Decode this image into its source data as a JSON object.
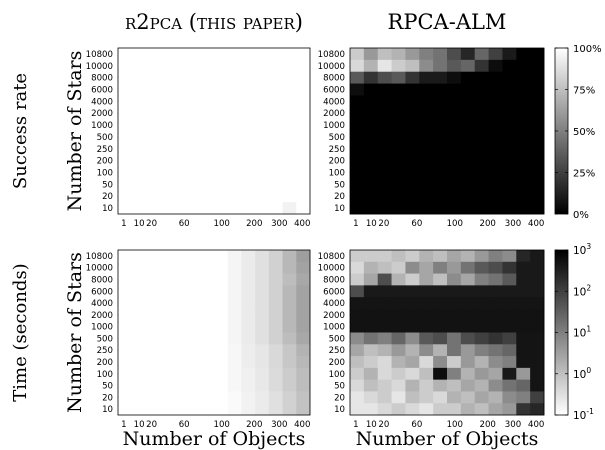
{
  "chart_data": [
    {
      "type": "heatmap",
      "title": "r2pca (this paper)",
      "row_label": "Success rate",
      "xlabel": "",
      "ylabel": "Number of Stars",
      "x_ticks": [
        "1",
        "10",
        "20",
        "60",
        "100",
        "200",
        "300",
        "400"
      ],
      "y_ticks": [
        "10800",
        "10000",
        "8000",
        "6000",
        "4000",
        "2000",
        "1000",
        "500",
        "250",
        "200",
        "100",
        "50",
        "20",
        "10"
      ],
      "colorbar": "none",
      "values": [
        [
          1,
          1,
          1,
          1,
          1,
          1,
          1,
          1,
          1,
          1,
          1,
          1,
          1,
          1
        ],
        [
          1,
          1,
          1,
          1,
          1,
          1,
          1,
          1,
          1,
          1,
          1,
          1,
          1,
          1
        ],
        [
          1,
          1,
          1,
          1,
          1,
          1,
          1,
          1,
          1,
          1,
          1,
          1,
          1,
          1
        ],
        [
          1,
          1,
          1,
          1,
          1,
          1,
          1,
          1,
          1,
          1,
          1,
          1,
          1,
          1
        ],
        [
          1,
          1,
          1,
          1,
          1,
          1,
          1,
          1,
          1,
          1,
          1,
          1,
          1,
          1
        ],
        [
          1,
          1,
          1,
          1,
          1,
          1,
          1,
          1,
          1,
          1,
          1,
          1,
          1,
          1
        ],
        [
          1,
          1,
          1,
          1,
          1,
          1,
          1,
          1,
          1,
          1,
          1,
          1,
          1,
          1
        ],
        [
          1,
          1,
          1,
          1,
          1,
          1,
          1,
          1,
          1,
          1,
          1,
          1,
          1,
          1
        ],
        [
          1,
          1,
          1,
          1,
          1,
          1,
          1,
          1,
          1,
          1,
          1,
          1,
          1,
          1
        ],
        [
          1,
          1,
          1,
          1,
          1,
          1,
          1,
          1,
          1,
          1,
          1,
          1,
          1,
          1
        ],
        [
          1,
          1,
          1,
          1,
          1,
          1,
          1,
          1,
          1,
          1,
          1,
          1,
          1,
          1
        ],
        [
          1,
          1,
          1,
          1,
          1,
          1,
          1,
          1,
          1,
          1,
          1,
          1,
          1,
          1
        ],
        [
          1,
          1,
          1,
          1,
          1,
          1,
          1,
          1,
          1,
          1,
          1,
          1,
          1,
          1
        ],
        [
          1,
          1,
          1,
          1,
          1,
          1,
          1,
          1,
          1,
          1,
          1,
          1,
          0.95,
          1
        ]
      ]
    },
    {
      "type": "heatmap",
      "title": "RPCA-ALM",
      "xlabel": "",
      "ylabel": "",
      "x_ticks": [
        "1",
        "10",
        "20",
        "60",
        "100",
        "200",
        "300",
        "400"
      ],
      "y_ticks": [
        "10800",
        "10000",
        "8000",
        "6000",
        "4000",
        "2000",
        "1000",
        "500",
        "250",
        "200",
        "100",
        "50",
        "20",
        "10"
      ],
      "colorbar": "linear",
      "colorbar_ticks": [
        "100%",
        "75%",
        "50%",
        "25%",
        "0%"
      ],
      "values": [
        [
          0.8,
          0.6,
          0.75,
          0.7,
          0.6,
          0.5,
          0.45,
          0.3,
          0.15,
          0.4,
          0.25,
          0.1,
          0,
          0
        ],
        [
          0.85,
          0.7,
          0.9,
          0.8,
          0.75,
          0.55,
          0.45,
          0.35,
          0.4,
          0.2,
          0.05,
          0,
          0,
          0
        ],
        [
          0.35,
          0.2,
          0.3,
          0.35,
          0.2,
          0.1,
          0.1,
          0.05,
          0,
          0,
          0,
          0,
          0,
          0
        ],
        [
          0.05,
          0,
          0,
          0,
          0,
          0,
          0,
          0,
          0,
          0,
          0,
          0,
          0,
          0
        ],
        [
          0,
          0,
          0,
          0,
          0,
          0,
          0,
          0,
          0,
          0,
          0,
          0,
          0,
          0
        ],
        [
          0,
          0,
          0,
          0,
          0,
          0,
          0,
          0,
          0,
          0,
          0,
          0,
          0,
          0
        ],
        [
          0,
          0,
          0,
          0,
          0,
          0,
          0,
          0,
          0,
          0,
          0,
          0,
          0,
          0
        ],
        [
          0,
          0,
          0,
          0,
          0,
          0,
          0,
          0,
          0,
          0,
          0,
          0,
          0,
          0
        ],
        [
          0,
          0,
          0,
          0,
          0,
          0,
          0,
          0,
          0,
          0,
          0,
          0,
          0,
          0
        ],
        [
          0,
          0,
          0,
          0,
          0,
          0,
          0,
          0,
          0,
          0,
          0,
          0,
          0,
          0
        ],
        [
          0,
          0,
          0,
          0,
          0,
          0,
          0,
          0,
          0,
          0,
          0,
          0,
          0,
          0
        ],
        [
          0,
          0,
          0,
          0,
          0,
          0,
          0,
          0,
          0,
          0,
          0,
          0,
          0,
          0
        ],
        [
          0,
          0,
          0,
          0,
          0,
          0,
          0,
          0,
          0,
          0,
          0,
          0,
          0,
          0
        ],
        [
          0,
          0,
          0,
          0,
          0,
          0,
          0,
          0,
          0,
          0,
          0,
          0,
          0,
          0
        ]
      ]
    },
    {
      "type": "heatmap",
      "row_label": "Time (seconds)",
      "xlabel": "Number of Objects",
      "ylabel": "Number of Stars",
      "x_ticks": [
        "1",
        "10",
        "20",
        "60",
        "100",
        "200",
        "300",
        "400"
      ],
      "y_ticks": [
        "10800",
        "10000",
        "8000",
        "6000",
        "4000",
        "2000",
        "1000",
        "500",
        "250",
        "200",
        "100",
        "50",
        "20",
        "10"
      ],
      "colorbar": "none",
      "values": [
        [
          0,
          0,
          0,
          0,
          0,
          0,
          0,
          0,
          0.04,
          0.08,
          0.12,
          0.18,
          0.28,
          0.38
        ],
        [
          0,
          0,
          0,
          0,
          0,
          0,
          0,
          0,
          0.04,
          0.08,
          0.12,
          0.18,
          0.28,
          0.36
        ],
        [
          0,
          0,
          0,
          0,
          0,
          0,
          0,
          0,
          0.04,
          0.08,
          0.12,
          0.18,
          0.26,
          0.34
        ],
        [
          0,
          0,
          0,
          0,
          0,
          0,
          0,
          0,
          0.04,
          0.08,
          0.12,
          0.18,
          0.28,
          0.36
        ],
        [
          0,
          0,
          0,
          0,
          0,
          0,
          0,
          0,
          0.04,
          0.08,
          0.12,
          0.18,
          0.28,
          0.36
        ],
        [
          0,
          0,
          0,
          0,
          0,
          0,
          0,
          0,
          0.04,
          0.08,
          0.12,
          0.18,
          0.28,
          0.36
        ],
        [
          0,
          0,
          0,
          0,
          0,
          0,
          0,
          0,
          0.04,
          0.08,
          0.12,
          0.18,
          0.28,
          0.36
        ],
        [
          0,
          0,
          0,
          0,
          0,
          0,
          0,
          0,
          0.04,
          0.08,
          0.12,
          0.18,
          0.26,
          0.34
        ],
        [
          0,
          0,
          0,
          0,
          0,
          0,
          0,
          0,
          0.03,
          0.07,
          0.1,
          0.15,
          0.22,
          0.3
        ],
        [
          0,
          0,
          0,
          0,
          0,
          0,
          0,
          0,
          0.03,
          0.07,
          0.1,
          0.15,
          0.22,
          0.28
        ],
        [
          0,
          0,
          0,
          0,
          0,
          0,
          0,
          0,
          0.03,
          0.06,
          0.09,
          0.14,
          0.2,
          0.26
        ],
        [
          0,
          0,
          0,
          0,
          0,
          0,
          0,
          0,
          0.03,
          0.06,
          0.09,
          0.14,
          0.2,
          0.26
        ],
        [
          0,
          0,
          0,
          0,
          0,
          0,
          0,
          0,
          0.02,
          0.05,
          0.08,
          0.12,
          0.18,
          0.24
        ],
        [
          0,
          0,
          0,
          0,
          0,
          0,
          0,
          0,
          0.02,
          0.05,
          0.08,
          0.12,
          0.18,
          0.24
        ]
      ]
    },
    {
      "type": "heatmap",
      "xlabel": "Number of Objects",
      "ylabel": "",
      "x_ticks": [
        "1",
        "10",
        "20",
        "60",
        "100",
        "200",
        "300",
        "400"
      ],
      "y_ticks": [
        "10800",
        "10000",
        "8000",
        "6000",
        "4000",
        "2000",
        "1000",
        "500",
        "250",
        "200",
        "100",
        "50",
        "20",
        "10"
      ],
      "colorbar": "log",
      "colorbar_ticks": [
        "10^3",
        "10^2",
        "10^1",
        "10^0",
        "10^-1"
      ],
      "values": [
        [
          0.2,
          0.2,
          0.2,
          0.25,
          0.2,
          0.3,
          0.25,
          0.35,
          0.3,
          0.4,
          0.5,
          0.45,
          0.85,
          0.9
        ],
        [
          0.15,
          0.3,
          0.25,
          0.2,
          0.45,
          0.35,
          0.5,
          0.4,
          0.55,
          0.65,
          0.7,
          0.8,
          0.9,
          0.9
        ],
        [
          0.2,
          0.35,
          0.7,
          0.3,
          0.2,
          0.35,
          0.25,
          0.45,
          0.35,
          0.5,
          0.55,
          0.65,
          0.9,
          0.9
        ],
        [
          0.7,
          0.9,
          0.9,
          0.9,
          0.9,
          0.9,
          0.9,
          0.9,
          0.9,
          0.9,
          0.9,
          0.9,
          0.9,
          0.9
        ],
        [
          0.92,
          0.92,
          0.92,
          0.92,
          0.92,
          0.92,
          0.92,
          0.92,
          0.92,
          0.92,
          0.92,
          0.92,
          0.92,
          0.92
        ],
        [
          0.93,
          0.93,
          0.93,
          0.93,
          0.93,
          0.93,
          0.93,
          0.93,
          0.93,
          0.93,
          0.93,
          0.93,
          0.93,
          0.93
        ],
        [
          0.93,
          0.93,
          0.93,
          0.93,
          0.93,
          0.93,
          0.93,
          0.93,
          0.93,
          0.93,
          0.93,
          0.93,
          0.93,
          0.93
        ],
        [
          0.45,
          0.55,
          0.5,
          0.6,
          0.45,
          0.65,
          0.7,
          0.55,
          0.7,
          0.75,
          0.8,
          0.75,
          0.92,
          0.92
        ],
        [
          0.35,
          0.25,
          0.3,
          0.4,
          0.3,
          0.45,
          0.3,
          0.55,
          0.4,
          0.5,
          0.55,
          0.6,
          0.92,
          0.92
        ],
        [
          0.25,
          0.2,
          0.15,
          0.3,
          0.35,
          0.15,
          0.45,
          0.2,
          0.4,
          0.3,
          0.45,
          0.5,
          0.92,
          0.92
        ],
        [
          0.2,
          0.3,
          0.15,
          0.2,
          0.15,
          0.25,
          0.95,
          0.5,
          0.3,
          0.4,
          0.35,
          0.9,
          0.4,
          0.92
        ],
        [
          0.15,
          0.25,
          0.2,
          0.15,
          0.3,
          0.2,
          0.3,
          0.25,
          0.35,
          0.3,
          0.45,
          0.55,
          0.6,
          0.92
        ],
        [
          0.1,
          0.15,
          0.2,
          0.1,
          0.25,
          0.2,
          0.15,
          0.3,
          0.25,
          0.35,
          0.3,
          0.45,
          0.5,
          0.75
        ],
        [
          0.1,
          0.1,
          0.15,
          0.2,
          0.15,
          0.1,
          0.2,
          0.2,
          0.3,
          0.25,
          0.35,
          0.4,
          0.8,
          0.85
        ]
      ]
    }
  ]
}
